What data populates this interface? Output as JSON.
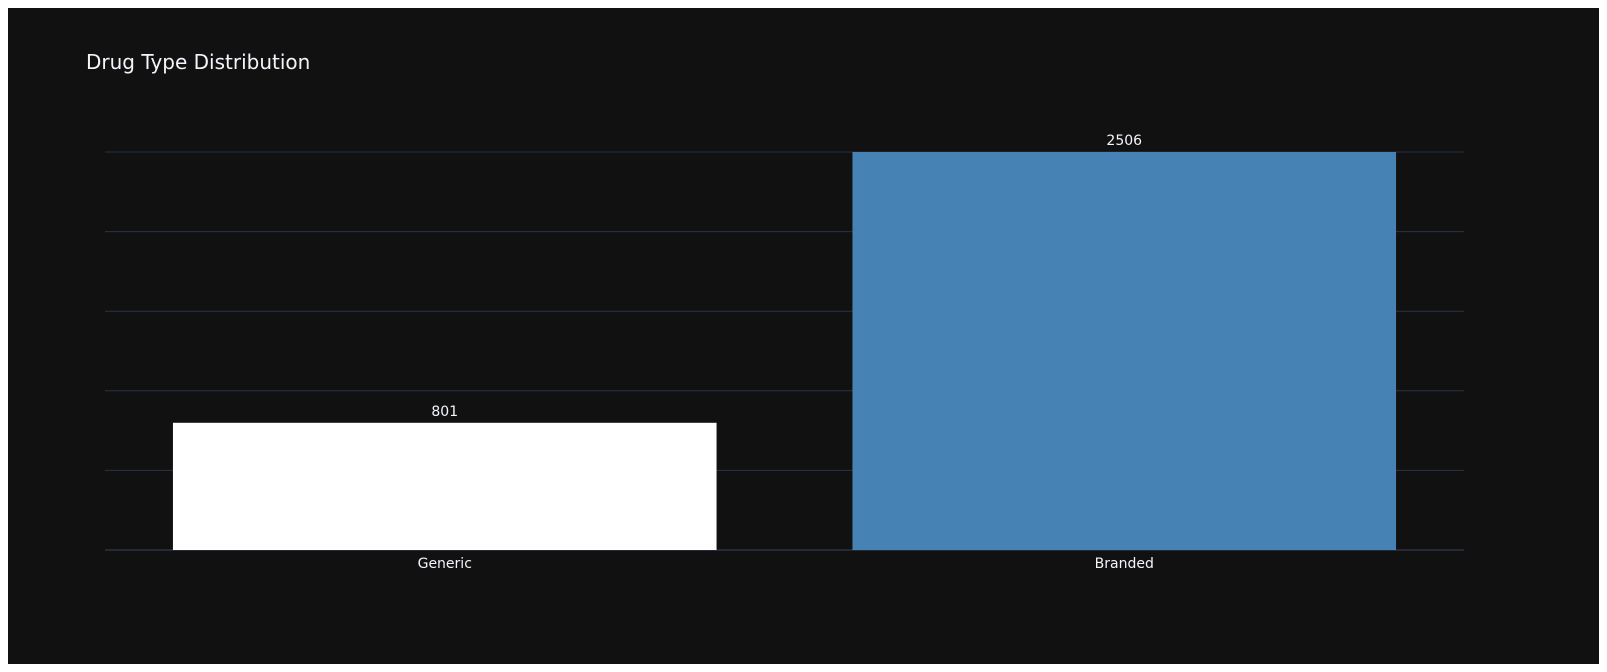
{
  "chart_data": {
    "type": "bar",
    "title": "Drug Type Distribution",
    "categories": [
      "Generic",
      "Branded"
    ],
    "values": [
      801,
      2506
    ],
    "colors": [
      "#ffffff",
      "#4682b4"
    ],
    "xlabel": "",
    "ylabel": "",
    "ylim": [
      0,
      2506
    ],
    "grid": true,
    "y_tick_labels_shown": false
  },
  "theme": {
    "background": "#111111",
    "gridline": "#283442",
    "text": "#f2f5fa"
  }
}
